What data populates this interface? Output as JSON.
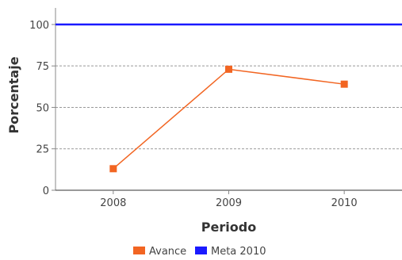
{
  "chart_data": {
    "type": "line",
    "xlabel": "Periodo",
    "ylabel": "Porcentaje",
    "categories": [
      "2008",
      "2009",
      "2010"
    ],
    "ylim": [
      0,
      110
    ],
    "yticks": [
      0,
      25,
      50,
      75,
      100
    ],
    "grid": true,
    "legend_position": "bottom",
    "series": [
      {
        "name": "Avance",
        "values": [
          13,
          73,
          64
        ],
        "color": "#f26522"
      },
      {
        "name": "Meta 2010",
        "values": [
          100,
          100,
          100
        ],
        "color": "#1a1aff"
      }
    ]
  }
}
